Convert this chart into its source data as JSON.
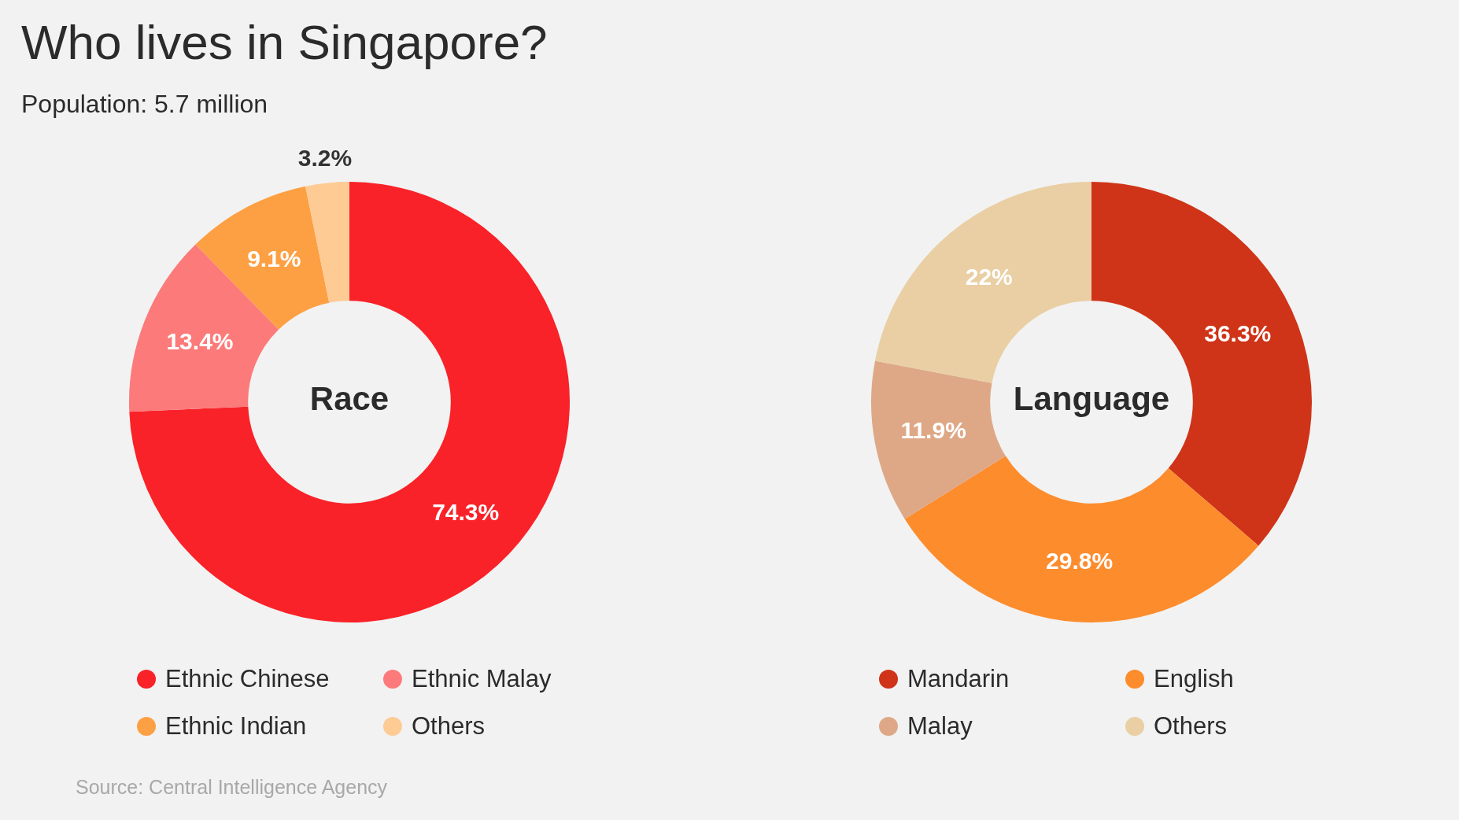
{
  "chart_data": [
    {
      "type": "donut",
      "title": "Who lives in Singapore?",
      "subtitle": "Population: 5.7 million",
      "annotations": [
        "Race",
        "Source: Central Intelligence Agency"
      ],
      "categories": [
        "Ethnic Chinese",
        "Ethnic Malay",
        "Ethnic Indian",
        "Others"
      ],
      "values": [
        74.3,
        13.4,
        9.1,
        3.2
      ],
      "value_labels": [
        "74.3%",
        "13.4%",
        "9.1%",
        "3.2%"
      ],
      "colors": [
        "#f92229",
        "#fd7a7a",
        "#fda043",
        "#fecb95"
      ],
      "legend": "bottom"
    },
    {
      "type": "donut",
      "annotations": [
        "Language"
      ],
      "categories": [
        "Mandarin",
        "English",
        "Malay",
        "Others"
      ],
      "values": [
        36.3,
        29.8,
        11.9,
        22
      ],
      "value_labels": [
        "36.3%",
        "29.8%",
        "11.9%",
        "22%"
      ],
      "colors": [
        "#cf3418",
        "#fd8c2d",
        "#dea887",
        "#e9cfa3"
      ],
      "legend": "bottom"
    }
  ]
}
